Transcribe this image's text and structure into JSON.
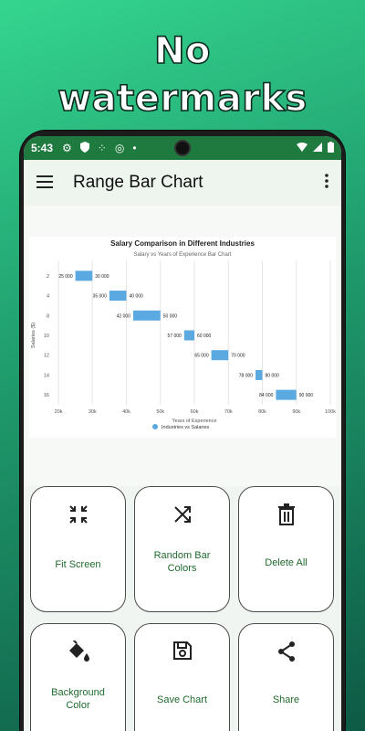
{
  "headline": "No watermarks",
  "status": {
    "time": "5:43"
  },
  "app": {
    "title": "Range Bar Chart"
  },
  "chart_data": {
    "type": "range-bar",
    "title": "Salary Comparison in Different Industries",
    "subtitle": "Salary vs Years of Experience Bar Chart",
    "xlabel": "Years of Experience",
    "ylabel": "Salaries ($)",
    "xticks": [
      "20k",
      "30k",
      "40k",
      "50k",
      "60k",
      "70k",
      "80k",
      "90k",
      "100k"
    ],
    "xlim": [
      20000,
      100000
    ],
    "categories": [
      "2",
      "4",
      "8",
      "10",
      "12",
      "14",
      "16"
    ],
    "series": [
      {
        "name": "Industries vs Salaries",
        "ranges": [
          [
            25000,
            30000
          ],
          [
            35000,
            40000
          ],
          [
            42000,
            50000
          ],
          [
            57000,
            60000
          ],
          [
            65000,
            70000
          ],
          [
            78000,
            80000
          ],
          [
            84000,
            90000
          ]
        ],
        "start_labels": [
          "25 000",
          "35 000",
          "42 000",
          "57 000",
          "65 000",
          "78 000",
          "84 000"
        ],
        "end_labels": [
          "30 000",
          "40 000",
          "50 000",
          "60 000",
          "70 000",
          "80 000",
          "90 000"
        ]
      }
    ],
    "grid": true,
    "legend": "bottom",
    "bar_color": "#5aa9e0"
  },
  "buttons": [
    {
      "label": "Fit Screen",
      "icon": "fit-screen-icon"
    },
    {
      "label": "Random Bar Colors",
      "icon": "shuffle-icon"
    },
    {
      "label": "Delete All",
      "icon": "trash-icon"
    },
    {
      "label": "Background Color",
      "icon": "paint-bucket-icon"
    },
    {
      "label": "Save Chart",
      "icon": "save-icon"
    },
    {
      "label": "Share",
      "icon": "share-icon"
    }
  ]
}
